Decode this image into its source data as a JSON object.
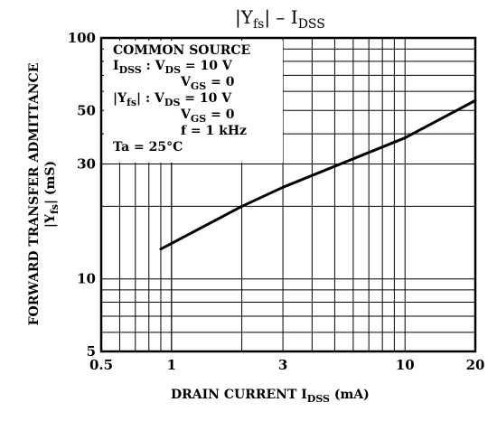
{
  "chart_data": {
    "type": "line",
    "title": "|Yfs| – IDSS",
    "xlabel": "DRAIN CURRENT  IDSS  (mA)",
    "ylabel": [
      "FORWARD TRANSFER ADMITTANCE",
      "|Yfs|  (mS)"
    ],
    "x_scale": "log",
    "y_scale": "log",
    "xlim": [
      0.5,
      20
    ],
    "ylim": [
      5,
      100
    ],
    "x_ticks": [
      0.5,
      1,
      3,
      10,
      20
    ],
    "x_tick_labels": [
      "0.5",
      "1",
      "3",
      "10",
      "20"
    ],
    "y_ticks": [
      5,
      10,
      30,
      50,
      100
    ],
    "y_tick_labels": [
      "5",
      "10",
      "30",
      "50",
      "100"
    ],
    "grid": true,
    "series": [
      {
        "x": [
          0.9,
          2,
          3,
          6,
          10,
          20
        ],
        "y": [
          13.3,
          20,
          24,
          31.5,
          38.5,
          55
        ]
      }
    ],
    "annotations": [
      "COMMON SOURCE",
      "IDSS  : VDS = 10 V",
      "VGS = 0",
      "|Yfs|  : VDS = 10 V",
      "VGS = 0",
      "f = 1 kHz",
      "Ta = 25°C"
    ]
  }
}
